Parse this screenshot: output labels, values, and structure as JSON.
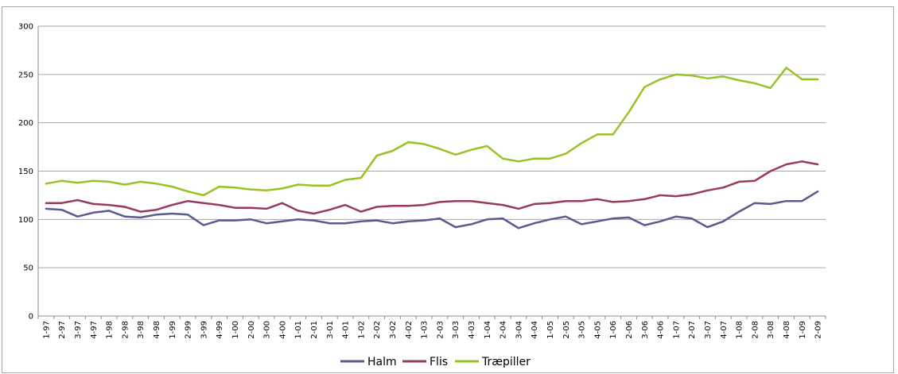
{
  "chart_data": {
    "type": "line",
    "title": "",
    "xlabel": "",
    "ylabel": "",
    "ylim": [
      0,
      300
    ],
    "yticks": [
      0,
      50,
      100,
      150,
      200,
      250,
      300
    ],
    "grid": "horizontal",
    "legend_position": "bottom",
    "categories": [
      "1-97",
      "2-97",
      "3-97",
      "4-97",
      "1-98",
      "2-98",
      "3-98",
      "4-98",
      "1-99",
      "2-99",
      "3-99",
      "4-99",
      "1-00",
      "2-00",
      "3-00",
      "4-00",
      "1-01",
      "2-01",
      "3-01",
      "4-01",
      "1-02",
      "2-02",
      "3-02",
      "4-02",
      "1-03",
      "2-03",
      "3-03",
      "4-03",
      "1-04",
      "2-04",
      "3-04",
      "4-04",
      "1-05",
      "2-05",
      "3-05",
      "4-05",
      "1-06",
      "2-06",
      "3-06",
      "4-06",
      "1-07",
      "2-07",
      "3-07",
      "4-07",
      "1-08",
      "2-08",
      "3-08",
      "4-08",
      "1-09",
      "2-09"
    ],
    "series": [
      {
        "name": "Halm",
        "color": "#5b5a8f",
        "values": [
          111,
          110,
          103,
          107,
          109,
          103,
          102,
          105,
          106,
          105,
          94,
          99,
          99,
          100,
          96,
          98,
          100,
          99,
          96,
          96,
          98,
          99,
          96,
          98,
          99,
          101,
          92,
          95,
          100,
          101,
          91,
          96,
          100,
          103,
          95,
          98,
          101,
          102,
          94,
          98,
          103,
          101,
          92,
          98,
          108,
          117,
          116,
          119,
          119,
          129
        ]
      },
      {
        "name": "Flis",
        "color": "#983a5e",
        "values": [
          117,
          117,
          120,
          116,
          115,
          113,
          108,
          110,
          115,
          119,
          117,
          115,
          112,
          112,
          111,
          117,
          109,
          106,
          110,
          115,
          108,
          113,
          114,
          114,
          115,
          118,
          119,
          119,
          117,
          115,
          111,
          116,
          117,
          119,
          119,
          121,
          118,
          119,
          121,
          125,
          124,
          126,
          130,
          133,
          139,
          140,
          150,
          157,
          160,
          157
        ]
      },
      {
        "name": "Træpiller",
        "color": "#99c224",
        "values": [
          137,
          140,
          138,
          140,
          139,
          136,
          139,
          137,
          134,
          129,
          125,
          134,
          133,
          131,
          130,
          132,
          136,
          135,
          135,
          141,
          143,
          166,
          171,
          180,
          178,
          173,
          167,
          172,
          176,
          163,
          160,
          163,
          163,
          168,
          179,
          188,
          188,
          211,
          237,
          245,
          250,
          249,
          246,
          248,
          244,
          241,
          236,
          257,
          245,
          245
        ]
      }
    ]
  }
}
